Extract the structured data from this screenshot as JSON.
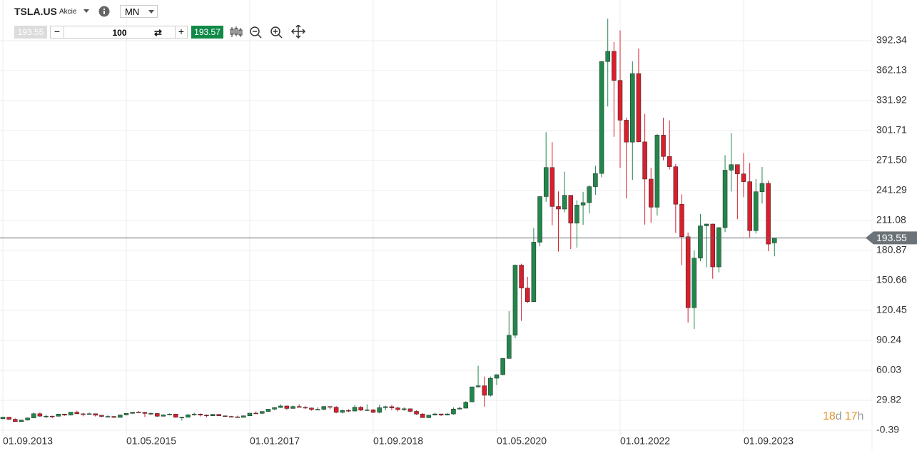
{
  "header": {
    "symbol": "TSLA.US",
    "asset_type": "Akcie",
    "timeframe": "MN"
  },
  "toolbar": {
    "quantity": 100,
    "ask": 193.57
  },
  "countdown": [
    "18",
    "d",
    "17",
    "h"
  ],
  "chart_data": {
    "type": "candlestick",
    "current_price": 193.55,
    "up_color": "#21874b",
    "down_color": "#d91f2d",
    "grid": true,
    "ylim": [
      -3.99,
      415.36
    ],
    "yticks": [
      -0.39,
      29.82,
      60.03,
      90.24,
      120.45,
      150.66,
      180.87,
      211.08,
      241.29,
      {
        "value": 271.5,
        "label": "271.50"
      },
      301.71,
      331.92,
      362.13,
      392.34
    ],
    "xticks": [
      "01.09.2013",
      "01.05.2015",
      "01.01.2017",
      "01.09.2018",
      "01.05.2020",
      "01.01.2022",
      "01.09.2023"
    ],
    "x": [
      "01.09.2013",
      "01.10.2013",
      "01.11.2013",
      "01.12.2013",
      "01.01.2014",
      "01.02.2014",
      "01.03.2014",
      "01.04.2014",
      "01.05.2014",
      "01.06.2014",
      "01.07.2014",
      "01.08.2014",
      "01.09.2014",
      "01.10.2014",
      "01.11.2014",
      "01.12.2014",
      "01.01.2015",
      "01.02.2015",
      "01.03.2015",
      "01.04.2015",
      "01.05.2015",
      "01.06.2015",
      "01.07.2015",
      "01.08.2015",
      "01.09.2015",
      "01.10.2015",
      "01.11.2015",
      "01.12.2015",
      "01.01.2016",
      "01.02.2016",
      "01.03.2016",
      "01.04.2016",
      "01.05.2016",
      "01.06.2016",
      "01.07.2016",
      "01.08.2016",
      "01.09.2016",
      "01.10.2016",
      "01.11.2016",
      "01.12.2016",
      "01.01.2017",
      "01.02.2017",
      "01.03.2017",
      "01.04.2017",
      "01.05.2017",
      "01.06.2017",
      "01.07.2017",
      "01.08.2017",
      "01.09.2017",
      "01.10.2017",
      "01.11.2017",
      "01.12.2017",
      "01.01.2018",
      "01.02.2018",
      "01.03.2018",
      "01.04.2018",
      "01.05.2018",
      "01.06.2018",
      "01.07.2018",
      "01.08.2018",
      "01.09.2018",
      "01.10.2018",
      "01.11.2018",
      "01.12.2018",
      "01.01.2019",
      "01.02.2019",
      "01.03.2019",
      "01.04.2019",
      "01.05.2019",
      "01.06.2019",
      "01.07.2019",
      "01.08.2019",
      "01.09.2019",
      "01.10.2019",
      "01.11.2019",
      "01.12.2019",
      "01.01.2020",
      "01.02.2020",
      "01.03.2020",
      "01.04.2020",
      "01.05.2020",
      "01.06.2020",
      "01.07.2020",
      "01.08.2020",
      "01.09.2020",
      "01.10.2020",
      "01.11.2020",
      "01.12.2020",
      "01.01.2021",
      "01.02.2021",
      "01.03.2021",
      "01.04.2021",
      "01.05.2021",
      "01.06.2021",
      "01.07.2021",
      "01.08.2021",
      "01.09.2021",
      "01.10.2021",
      "01.11.2021",
      "01.12.2021",
      "01.01.2022",
      "01.02.2022",
      "01.03.2022",
      "01.04.2022",
      "01.05.2022",
      "01.06.2022",
      "01.07.2022",
      "01.08.2022",
      "01.09.2022",
      "01.10.2022",
      "01.11.2022",
      "01.12.2022",
      "01.01.2023",
      "01.02.2023",
      "01.03.2023",
      "01.04.2023",
      "01.05.2023",
      "01.06.2023",
      "01.07.2023",
      "01.08.2023",
      "01.09.2023",
      "01.10.2023",
      "01.11.2023",
      "01.12.2023",
      "01.01.2024",
      "01.02.2024"
    ],
    "open": [
      11.2,
      12.9,
      10.7,
      8.4,
      10.0,
      12.1,
      16.3,
      13.9,
      13.9,
      13.8,
      16.0,
      14.9,
      17.9,
      16.2,
      16.1,
      16.3,
      14.8,
      13.6,
      13.6,
      12.6,
      15.1,
      16.7,
      17.9,
      17.7,
      16.6,
      16.6,
      13.8,
      15.3,
      16.0,
      12.7,
      12.8,
      15.3,
      16.0,
      14.9,
      14.2,
      15.7,
      14.2,
      13.6,
      13.2,
      12.6,
      14.2,
      16.9,
      16.7,
      18.6,
      20.9,
      22.6,
      24.1,
      21.6,
      23.6,
      22.7,
      22.1,
      20.6,
      20.8,
      23.6,
      22.9,
      17.7,
      19.6,
      19.0,
      22.9,
      19.9,
      20.2,
      17.7,
      22.5,
      23.4,
      22.2,
      20.5,
      21.3,
      18.7,
      16.0,
      12.3,
      14.9,
      16.1,
      15.0,
      16.1,
      21.0,
      21.9,
      28.3,
      43.4,
      44.5,
      34.9,
      52.1,
      55.7,
      72.0,
      95.4,
      166.1,
      143.0,
      129.3,
      189.2,
      235.2,
      264.5,
      225.2,
      222.6,
      236.5,
      208.4,
      226.6,
      229.1,
      245.2,
      258.5,
      371.3,
      381.6,
      352.3,
      312.2,
      290.1,
      359.2,
      290.3,
      252.8,
      224.5,
      297.1,
      275.6,
      265.3,
      227.5,
      194.7,
      123.2,
      173.2,
      205.7,
      207.5,
      164.3,
      203.9,
      261.8,
      267.4,
      258.1,
      250.2,
      200.8,
      240.1,
      248.5,
      188.5
    ],
    "high": [
      13.0,
      12.9,
      11.7,
      10.4,
      12.4,
      17.6,
      17.7,
      15.2,
      14.4,
      16.0,
      16.2,
      18.0,
      19.4,
      17.3,
      17.6,
      16.5,
      15.1,
      14.8,
      13.9,
      15.4,
      16.9,
      18.0,
      19.1,
      18.3,
      17.9,
      16.9,
      15.5,
      16.6,
      16.0,
      13.3,
      15.8,
      17.3,
      16.6,
      15.6,
      15.9,
      15.8,
      14.5,
      14.2,
      14.3,
      14.5,
      17.0,
      18.6,
      18.7,
      21.1,
      22.9,
      25.8,
      24.5,
      24.5,
      25.9,
      24.3,
      22.4,
      22.9,
      23.9,
      23.8,
      24.2,
      20.6,
      20.9,
      24.9,
      24.0,
      25.8,
      21.2,
      25.3,
      24.3,
      25.2,
      23.5,
      22.8,
      21.4,
      19.7,
      17.1,
      15.2,
      17.3,
      16.2,
      16.8,
      22.7,
      23.5,
      29.0,
      43.5,
      64.6,
      53.8,
      53.8,
      55.8,
      72.5,
      119.7,
      166.7,
      167.5,
      154.3,
      203.4,
      235.3,
      300.1,
      290.0,
      240.4,
      260.3,
      236.7,
      231.5,
      240.0,
      246.6,
      266.3,
      371.7,
      414.5,
      390.9,
      402.7,
      314.6,
      371.6,
      384.3,
      318.5,
      264.2,
      298.3,
      314.7,
      311.9,
      268.0,
      237.4,
      198.9,
      180.7,
      217.7,
      207.8,
      207.8,
      204.5,
      276.9,
      299.3,
      267.5,
      278.9,
      268.9,
      252.8,
      265.1,
      251.2,
      193.9
    ],
    "low": [
      10.8,
      10.1,
      8.1,
      8.2,
      9.4,
      11.8,
      13.2,
      12.0,
      11.9,
      13.5,
      14.3,
      14.6,
      16.1,
      13.7,
      15.6,
      13.5,
      12.8,
      12.9,
      12.1,
      12.4,
      14.6,
      16.3,
      17.2,
      13.1,
      15.2,
      13.3,
      13.5,
      14.7,
      12.2,
      9.4,
      12.6,
      14.3,
      13.6,
      12.8,
      13.9,
      14.0,
      13.1,
      13.0,
      12.6,
      12.6,
      14.1,
      16.5,
      16.0,
      18.3,
      20.0,
      22.0,
      20.1,
      21.5,
      22.9,
      21.0,
      19.5,
      20.4,
      19.9,
      20.7,
      16.8,
      16.5,
      18.0,
      18.6,
      19.1,
      19.1,
      16.9,
      16.7,
      19.8,
      19.8,
      18.6,
      19.2,
      17.7,
      15.1,
      12.3,
      11.8,
      14.8,
      14.1,
      14.6,
      15.3,
      20.7,
      21.8,
      28.2,
      42.6,
      23.4,
      33.6,
      45.3,
      55.1,
      72.0,
      92.3,
      109.9,
      128.0,
      129.3,
      185.1,
      230.0,
      206.3,
      179.8,
      219.3,
      182.3,
      183.8,
      206.8,
      218.3,
      236.9,
      254.6,
      326.0,
      295.4,
      264.0,
      233.3,
      252.0,
      290.0,
      206.9,
      208.7,
      216.2,
      271.8,
      262.5,
      198.6,
      166.2,
      108.2,
      101.8,
      169.9,
      163.9,
      152.4,
      158.8,
      199.4,
      240.3,
      212.4,
      234.6,
      194.1,
      197.9,
      228.2,
      180.1,
      175.0
    ],
    "close": [
      12.9,
      10.7,
      8.4,
      10.0,
      12.1,
      16.3,
      13.9,
      13.9,
      13.8,
      16.0,
      14.9,
      17.9,
      16.2,
      16.1,
      16.3,
      14.8,
      13.6,
      13.6,
      12.6,
      15.1,
      16.7,
      17.9,
      17.7,
      16.6,
      16.6,
      13.8,
      15.3,
      16.0,
      12.7,
      12.8,
      15.3,
      16.0,
      14.9,
      14.2,
      15.7,
      14.2,
      13.6,
      13.2,
      12.6,
      14.2,
      16.9,
      16.7,
      18.6,
      20.9,
      22.6,
      24.1,
      21.6,
      23.6,
      22.7,
      22.1,
      20.6,
      20.8,
      23.6,
      22.9,
      17.7,
      19.6,
      19.0,
      22.9,
      19.9,
      20.2,
      17.7,
      22.5,
      23.4,
      22.2,
      20.5,
      21.3,
      18.7,
      16.0,
      12.3,
      14.9,
      16.1,
      15.0,
      16.1,
      21.0,
      21.9,
      27.9,
      43.4,
      44.5,
      34.9,
      52.1,
      55.7,
      72.0,
      95.4,
      166.1,
      143.0,
      129.3,
      189.2,
      235.2,
      264.5,
      225.2,
      222.6,
      236.5,
      208.4,
      226.6,
      229.1,
      245.2,
      258.5,
      371.3,
      381.6,
      352.3,
      312.2,
      290.1,
      359.2,
      290.3,
      252.8,
      224.5,
      297.1,
      275.6,
      265.3,
      227.5,
      194.7,
      123.2,
      173.2,
      205.7,
      207.5,
      164.3,
      203.9,
      261.8,
      267.4,
      258.1,
      250.2,
      200.8,
      240.1,
      248.5,
      187.3,
      193.55
    ]
  }
}
